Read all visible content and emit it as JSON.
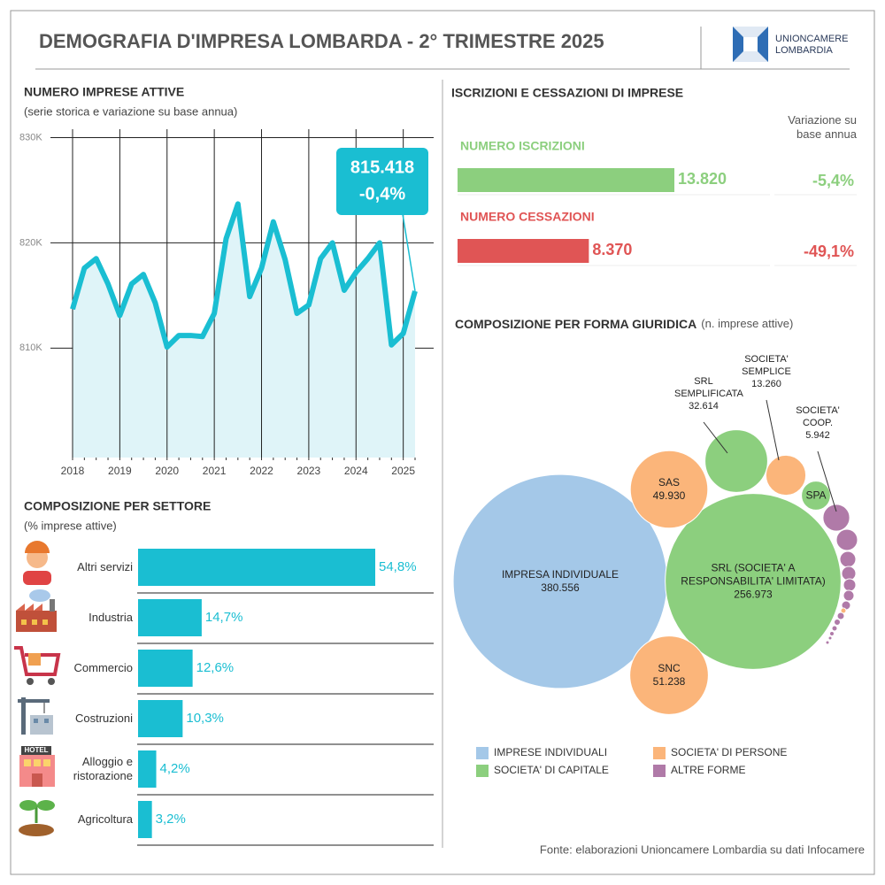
{
  "header": {
    "title": "DEMOGRAFIA D'IMPRESA LOMBARDA - 2° TRIMESTRE 2025",
    "logo": [
      "UNIONCAMERE",
      "LOMBARDIA"
    ]
  },
  "chart_data": [
    {
      "type": "line",
      "title": "NUMERO IMPRESE ATTIVE",
      "subtitle": "(serie storica e variazione su base annua)",
      "categories": [
        "2018",
        null,
        null,
        null,
        "2019",
        null,
        null,
        null,
        "2020",
        null,
        null,
        null,
        "2021",
        null,
        null,
        null,
        "2022",
        null,
        null,
        null,
        "2023",
        null,
        null,
        null,
        "2024",
        null,
        null,
        null,
        "2025",
        null
      ],
      "values": [
        813700,
        817600,
        818500,
        816100,
        813100,
        816100,
        817000,
        814300,
        810100,
        811200,
        811200,
        811100,
        813300,
        820400,
        823700,
        814900,
        817600,
        822000,
        818400,
        813300,
        814100,
        818500,
        820000,
        815500,
        817200,
        818500,
        820000,
        810300,
        811400,
        815418
      ],
      "color": "#1abed2",
      "fill": "#dff4f8",
      "ylim": [
        799600,
        830800
      ],
      "yticks": [
        {
          "value": 810000,
          "label": "810K"
        },
        {
          "value": 820000,
          "label": "820K"
        },
        {
          "value": 830000,
          "label": "830K"
        }
      ],
      "grid": true,
      "annotations": [
        "815.418",
        "-0,4%"
      ]
    },
    {
      "type": "hbar",
      "title": "COMPOSIZIONE PER SETTORE",
      "subtitle": "(% imprese attive)",
      "categories": [
        "Altri servizi",
        "Industria",
        "Commercio",
        "Costruzioni",
        "Alloggio e ristorazione",
        "Agricoltura"
      ],
      "values": [
        54.8,
        14.7,
        12.6,
        10.3,
        4.2,
        3.2
      ],
      "value_labels": [
        "54,8%",
        "14,7%",
        "12,6%",
        "10,3%",
        "4,2%",
        "3,2%"
      ],
      "color": "#1abed2"
    },
    {
      "type": "flowbar",
      "title": "ISCRIZIONI E CESSAZIONI DI IMPRESE",
      "categories": [
        "NUMERO ISCRIZIONI",
        "NUMERO CESSAZIONI"
      ],
      "values": [
        13820,
        8370
      ],
      "value_labels": [
        "13.820",
        "8.370"
      ],
      "colors": [
        "#8ccf7e",
        "#e05555"
      ],
      "change_title": "Variazione su base annua",
      "change_labels": [
        "-5,4%",
        "-49,1%"
      ]
    },
    {
      "type": "bubble",
      "title": "COMPOSIZIONE PER FORMA GIURIDICA",
      "subtitle": "(n. imprese attive)",
      "groups": [
        {
          "name": "IMPRESE INDIVIDUALI",
          "color": "#a4c8e8"
        },
        {
          "name": "SOCIETA' DI PERSONE",
          "color": "#fbb57a"
        },
        {
          "name": "SOCIETA' DI CAPITALE",
          "color": "#8ccf7e"
        },
        {
          "name": "ALTRE FORME",
          "color": "#b07aa8"
        }
      ],
      "nodes": [
        {
          "name": "IMPRESA INDIVIDUALE",
          "value": 380556,
          "value_label": "380.556",
          "group": 0
        },
        {
          "name": "SRL (SOCIETA' A RESPONSABILITA' LIMITATA)",
          "value": 256973,
          "value_label": "256.973",
          "group": 2
        },
        {
          "name": "SAS",
          "value": 49930,
          "value_label": "49.930",
          "group": 1
        },
        {
          "name": "SNC",
          "value": 51238,
          "value_label": "51.238",
          "group": 1
        },
        {
          "name": "SRL SEMPLIFICATA",
          "value": 32614,
          "value_label": "32.614",
          "group": 2
        },
        {
          "name": "SOCIETA' SEMPLICE",
          "value": 13260,
          "value_label": "13.260",
          "group": 1
        },
        {
          "name": "SPA",
          "value": 7000,
          "group": 2
        },
        {
          "name": "SOCIETA' COOP.",
          "value": 5942,
          "value_label": "5.942",
          "group": 3
        },
        {
          "name": null,
          "value": 3748,
          "group": 3
        },
        {
          "name": null,
          "value": 2109,
          "group": 3
        },
        {
          "name": null,
          "value": 1666,
          "group": 3
        },
        {
          "name": null,
          "value": 1275,
          "group": 3
        },
        {
          "name": null,
          "value": 937,
          "group": 3
        },
        {
          "name": null,
          "value": 651,
          "group": 3
        },
        {
          "name": null,
          "value": 234,
          "group": 1
        },
        {
          "name": null,
          "value": 416,
          "group": 3
        },
        {
          "name": null,
          "value": 319,
          "group": 3
        },
        {
          "name": null,
          "value": 234,
          "group": 3
        },
        {
          "name": null,
          "value": 163,
          "group": 3
        },
        {
          "name": null,
          "value": 104,
          "group": 3
        },
        {
          "name": null,
          "value": 104,
          "group": 3
        }
      ]
    }
  ],
  "source": "Fonte: elaborazioni Unioncamere Lombardia su dati Infocamere"
}
